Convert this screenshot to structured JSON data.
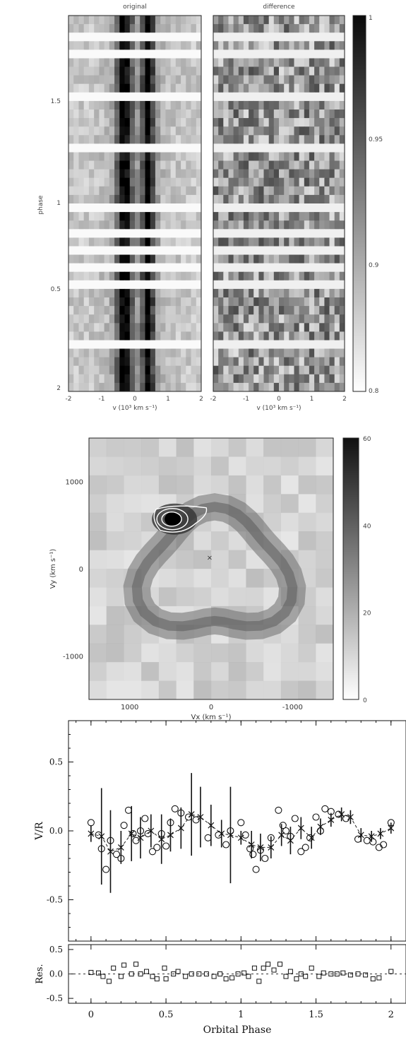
{
  "trailed_spectra": {
    "panels": [
      {
        "title": "original"
      },
      {
        "title": "difference"
      }
    ],
    "ylabel": "phase",
    "xlabel": "v (10³ km s⁻¹)",
    "yticks": [
      "0.5",
      "1",
      "1.5",
      "2"
    ],
    "xticks": [
      "-2",
      "-1",
      "0",
      "1",
      "2"
    ],
    "colorbar_ticks": [
      "0.8",
      "0.9",
      "0.95",
      "1"
    ]
  },
  "doppler_map": {
    "xlabel": "Vx (km s⁻¹)",
    "ylabel": "Vy (km s⁻¹)",
    "xticks": [
      "-1000",
      "0",
      "1000"
    ],
    "yticks": [
      "1000",
      "0",
      "-1000"
    ],
    "colorbar_ticks": [
      "0",
      "20",
      "40",
      "60"
    ],
    "center_marker": "×"
  },
  "chart_data": {
    "type": "scatter",
    "xlabel": "Orbital Phase",
    "ylabel": "V/R",
    "residual_ylabel": "Res.",
    "xlim": [
      -0.15,
      2.1
    ],
    "ylim": [
      -0.8,
      0.8
    ],
    "residual_ylim": [
      -0.6,
      0.6
    ],
    "xticks": [
      "0",
      "0.5",
      "1",
      "1.5",
      "2"
    ],
    "yticks": [
      "0.5",
      "0.0",
      "-0.5"
    ],
    "residual_yticks": [
      "0.5",
      "0.0",
      "-0.5"
    ],
    "series": [
      {
        "marker": "circle",
        "x": [
          0.0,
          0.05,
          0.07,
          0.1,
          0.13,
          0.17,
          0.2,
          0.22,
          0.25,
          0.28,
          0.3,
          0.33,
          0.36,
          0.38,
          0.41,
          0.44,
          0.47,
          0.5,
          0.53,
          0.56,
          0.6,
          0.65,
          0.7,
          0.78,
          0.85,
          0.9,
          0.93,
          1.0,
          1.03,
          1.06,
          1.08,
          1.1,
          1.13,
          1.16,
          1.2,
          1.25,
          1.28,
          1.3,
          1.33,
          1.36,
          1.4,
          1.43,
          1.46,
          1.5,
          1.53,
          1.56,
          1.6,
          1.65,
          1.7,
          1.78,
          1.84,
          1.88,
          1.92,
          1.95,
          2.0
        ],
        "y": [
          0.06,
          -0.03,
          -0.13,
          -0.28,
          -0.07,
          -0.17,
          -0.2,
          0.04,
          0.15,
          -0.02,
          -0.07,
          0.0,
          0.09,
          -0.02,
          -0.15,
          -0.12,
          -0.02,
          -0.11,
          0.06,
          0.16,
          0.13,
          0.1,
          0.08,
          -0.05,
          -0.03,
          -0.1,
          0.0,
          0.06,
          -0.03,
          -0.13,
          -0.17,
          -0.28,
          -0.14,
          -0.2,
          -0.05,
          0.15,
          0.04,
          0.0,
          -0.04,
          0.09,
          -0.15,
          -0.12,
          -0.05,
          0.1,
          0.0,
          0.16,
          0.14,
          0.12,
          0.09,
          -0.06,
          -0.07,
          -0.08,
          -0.12,
          -0.1,
          0.06
        ]
      },
      {
        "marker": "cross",
        "x": [
          0.0,
          0.07,
          0.13,
          0.2,
          0.27,
          0.33,
          0.4,
          0.47,
          0.53,
          0.6,
          0.67,
          0.73,
          0.8,
          0.87,
          0.93,
          1.0,
          1.07,
          1.13,
          1.2,
          1.27,
          1.33,
          1.4,
          1.47,
          1.53,
          1.6,
          1.67,
          1.73,
          1.8,
          1.87,
          1.93,
          2.0
        ],
        "y": [
          -0.02,
          -0.04,
          -0.15,
          -0.12,
          -0.02,
          -0.05,
          0.0,
          -0.06,
          -0.03,
          0.02,
          0.12,
          0.1,
          0.04,
          -0.02,
          -0.03,
          -0.05,
          -0.1,
          -0.12,
          -0.12,
          -0.03,
          -0.07,
          0.02,
          -0.05,
          0.03,
          0.08,
          0.12,
          0.1,
          -0.03,
          -0.04,
          -0.02,
          0.02
        ],
        "yerr": [
          0.06,
          0.35,
          0.3,
          0.12,
          0.2,
          0.15,
          0.12,
          0.18,
          0.12,
          0.15,
          0.3,
          0.22,
          0.15,
          0.1,
          0.35,
          0.05,
          0.1,
          0.1,
          0.08,
          0.08,
          0.1,
          0.08,
          0.08,
          0.06,
          0.05,
          0.05,
          0.05,
          0.05,
          0.04,
          0.04,
          0.04
        ]
      },
      {
        "marker": "square",
        "panel": "residuals",
        "x": [
          0.0,
          0.05,
          0.08,
          0.12,
          0.15,
          0.2,
          0.22,
          0.27,
          0.3,
          0.33,
          0.37,
          0.41,
          0.44,
          0.49,
          0.5,
          0.55,
          0.58,
          0.63,
          0.67,
          0.72,
          0.77,
          0.82,
          0.86,
          0.9,
          0.94,
          0.98,
          1.02,
          1.05,
          1.09,
          1.12,
          1.15,
          1.18,
          1.22,
          1.26,
          1.3,
          1.33,
          1.37,
          1.4,
          1.43,
          1.47,
          1.52,
          1.55,
          1.6,
          1.64,
          1.68,
          1.73,
          1.78,
          1.83,
          1.88,
          1.92,
          2.0
        ],
        "y": [
          0.03,
          0.02,
          -0.05,
          -0.15,
          0.12,
          -0.05,
          0.18,
          0.0,
          0.2,
          0.0,
          0.05,
          -0.05,
          -0.1,
          0.12,
          -0.1,
          0.0,
          0.05,
          -0.05,
          0.0,
          0.0,
          0.0,
          -0.05,
          0.0,
          -0.1,
          -0.08,
          0.0,
          0.02,
          -0.05,
          0.12,
          -0.15,
          0.12,
          0.2,
          0.08,
          0.2,
          -0.05,
          0.05,
          -0.1,
          0.0,
          -0.05,
          0.12,
          -0.05,
          0.02,
          0.0,
          0.0,
          0.02,
          -0.02,
          0.0,
          -0.02,
          -0.1,
          -0.08,
          0.05
        ]
      }
    ]
  }
}
